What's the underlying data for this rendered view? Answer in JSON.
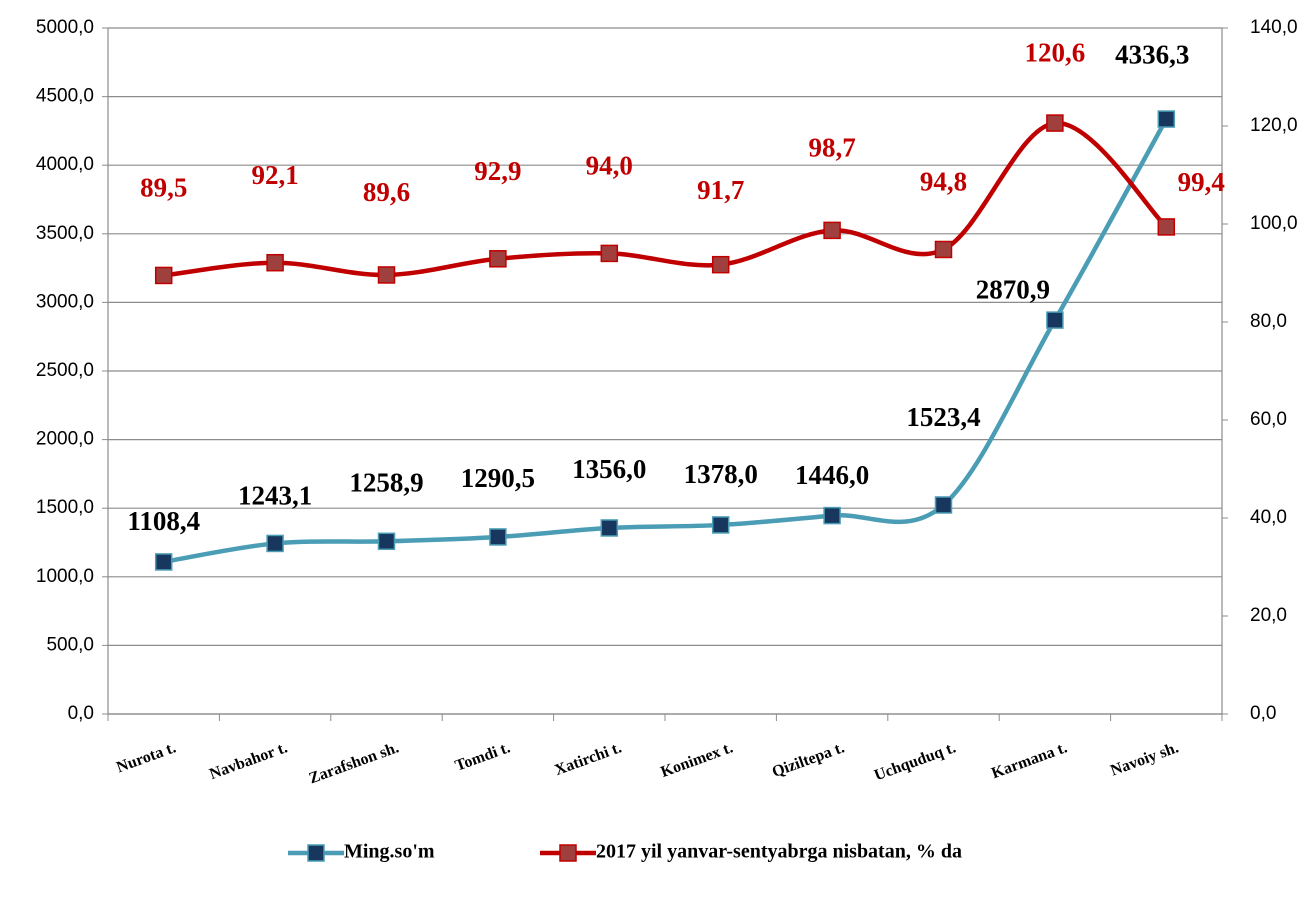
{
  "chart_data": {
    "type": "line",
    "categories": [
      "Nurota t.",
      "Navbahor t.",
      "Zarafshon sh.",
      "Tomdi t.",
      "Xatirchi t.",
      "Konimex t.",
      "Qiziltepa t.",
      "Uchquduq t.",
      "Karmana t.",
      "Navoiy sh."
    ],
    "series": [
      {
        "name": "Ming.so'm",
        "color": "#4a9db5",
        "marker_color": "#17375e",
        "values": [
          1108.4,
          1243.1,
          1258.9,
          1290.5,
          1356.0,
          1378.0,
          1446.0,
          1523.4,
          2870.9,
          4336.3
        ],
        "value_labels": [
          "1108,4",
          "1243,1",
          "1258,9",
          "1290,5",
          "1356,0",
          "1378,0",
          "1446,0",
          "1523,4",
          "2870,9",
          "4336,3"
        ]
      },
      {
        "name": "2017 yil yanvar-sentyabrga nisbatan, % da",
        "color": "#c00000",
        "marker_color": "#a0403e",
        "axis": "y2",
        "values": [
          89.5,
          92.1,
          89.6,
          92.9,
          94.0,
          91.7,
          98.7,
          94.8,
          120.6,
          99.4
        ],
        "value_labels": [
          "89,5",
          "92,1",
          "89,6",
          "92,9",
          "94,0",
          "91,7",
          "98,7",
          "94,8",
          "120,6",
          "99,4"
        ]
      }
    ],
    "ylim": [
      0,
      5000
    ],
    "yticks": [
      {
        "value": 0,
        "label": "0,0"
      },
      {
        "value": 500,
        "label": "500,0"
      },
      {
        "value": 1000,
        "label": "1000,0"
      },
      {
        "value": 1500,
        "label": "1500,0"
      },
      {
        "value": 2000,
        "label": "2000,0"
      },
      {
        "value": 2500,
        "label": "2500,0"
      },
      {
        "value": 3000,
        "label": "3000,0"
      },
      {
        "value": 3500,
        "label": "3500,0"
      },
      {
        "value": 4000,
        "label": "4000,0"
      },
      {
        "value": 4500,
        "label": "4500,0"
      },
      {
        "value": 5000,
        "label": "5000,0"
      }
    ],
    "y2lim": [
      0,
      140
    ],
    "y2ticks": [
      {
        "value": 0,
        "label": "0,0"
      },
      {
        "value": 20,
        "label": "20,0"
      },
      {
        "value": 40,
        "label": "40,0"
      },
      {
        "value": 60,
        "label": "60,0"
      },
      {
        "value": 80,
        "label": "80,0"
      },
      {
        "value": 100,
        "label": "100,0"
      },
      {
        "value": 120,
        "label": "120,0"
      },
      {
        "value": 140,
        "label": "140,0"
      }
    ],
    "grid": true,
    "legend": "bottom"
  }
}
